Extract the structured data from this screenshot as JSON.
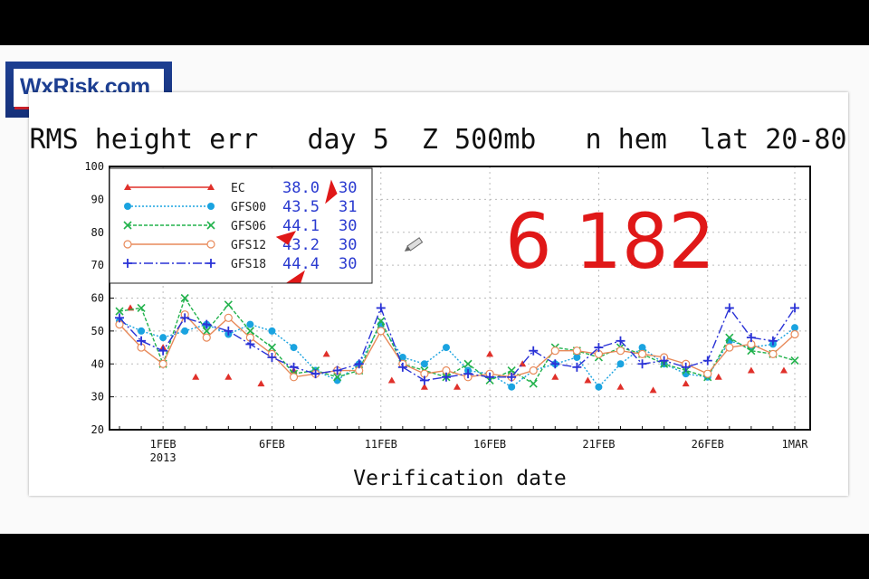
{
  "logo": {
    "text": "WxRisk.com"
  },
  "chart_data": {
    "type": "line",
    "title": "RMS height err   day 5  Z 500mb   n hem  lat 20-80",
    "xlabel": "Verification date",
    "ylabel": "",
    "ylim": [
      20,
      100
    ],
    "yticks": [
      20,
      30,
      40,
      50,
      60,
      70,
      80,
      90,
      100
    ],
    "x_range_days": [
      0,
      31
    ],
    "xtick_days": [
      2,
      7,
      12,
      17,
      22,
      27,
      31
    ],
    "xtick_labels": [
      "1FEB",
      "6FEB",
      "11FEB",
      "16FEB",
      "21FEB",
      "26FEB",
      "1MAR"
    ],
    "xtick_sublabel": "2013",
    "grid": true,
    "legend_position": "top-left",
    "legend": [
      {
        "name": "EC",
        "mean": "38.0",
        "count": "30",
        "color": "#e0302a",
        "marker": "triangle",
        "dash": ""
      },
      {
        "name": "GFS00",
        "mean": "43.5",
        "count": "31",
        "color": "#1aa3e0",
        "marker": "circle",
        "dash": "2,2"
      },
      {
        "name": "GFS06",
        "mean": "44.1",
        "count": "30",
        "color": "#22b24c",
        "marker": "x",
        "dash": "4,2"
      },
      {
        "name": "GFS12",
        "mean": "43.2",
        "count": "30",
        "color": "#e88a5a",
        "marker": "open-circle",
        "dash": ""
      },
      {
        "name": "GFS18",
        "mean": "44.4",
        "count": "30",
        "color": "#2a32d6",
        "marker": "plus",
        "dash": "10,3,2,3"
      }
    ],
    "series": [
      {
        "name": "EC",
        "x": [
          0.5,
          2,
          3.5,
          5,
          6.5,
          8,
          9.5,
          11,
          12.5,
          14,
          15.5,
          17,
          18.5,
          20,
          21.5,
          23,
          24.5,
          26,
          27.5,
          29,
          30.5
        ],
        "y": [
          57,
          45,
          36,
          36,
          34,
          38,
          43,
          40,
          35,
          33,
          33,
          43,
          40,
          36,
          35,
          33,
          32,
          34,
          36,
          38,
          38
        ]
      },
      {
        "name": "GFS00",
        "x": [
          0,
          1,
          2,
          3,
          4,
          5,
          6,
          7,
          8,
          9,
          10,
          11,
          12,
          13,
          14,
          15,
          16,
          17,
          18,
          19,
          20,
          21,
          22,
          23,
          24,
          25,
          26,
          27,
          28,
          29,
          30,
          31
        ],
        "y": [
          53,
          50,
          48,
          50,
          52,
          49,
          52,
          50,
          45,
          38,
          35,
          40,
          52,
          42,
          40,
          45,
          38,
          37,
          33,
          38,
          40,
          42,
          33,
          40,
          45,
          40,
          37,
          36,
          47,
          45,
          46,
          51
        ]
      },
      {
        "name": "GFS06",
        "x": [
          0,
          1,
          2,
          3,
          4,
          5,
          6,
          7,
          8,
          9,
          10,
          11,
          12,
          13,
          14,
          15,
          16,
          17,
          18,
          19,
          20,
          21,
          22,
          23,
          24,
          25,
          26,
          27,
          28,
          29,
          30,
          31
        ],
        "y": [
          56,
          57,
          40,
          60,
          50,
          58,
          50,
          45,
          37,
          38,
          36,
          38,
          53,
          40,
          38,
          36,
          40,
          35,
          38,
          34,
          45,
          44,
          42,
          45,
          43,
          40,
          38,
          36,
          48,
          44,
          43,
          41
        ]
      },
      {
        "name": "GFS12",
        "x": [
          0,
          1,
          2,
          3,
          4,
          5,
          6,
          7,
          8,
          9,
          10,
          11,
          12,
          13,
          14,
          15,
          16,
          17,
          18,
          19,
          20,
          21,
          22,
          23,
          24,
          25,
          26,
          27,
          28,
          29,
          30,
          31
        ],
        "y": [
          52,
          45,
          40,
          55,
          48,
          54,
          48,
          43,
          36,
          37,
          38,
          38,
          50,
          40,
          37,
          38,
          36,
          37,
          36,
          38,
          44,
          44,
          43,
          44,
          43,
          42,
          40,
          37,
          45,
          46,
          43,
          49
        ]
      },
      {
        "name": "GFS18",
        "x": [
          0,
          1,
          2,
          3,
          4,
          5,
          6,
          7,
          8,
          9,
          10,
          11,
          12,
          13,
          14,
          15,
          16,
          17,
          18,
          19,
          20,
          21,
          22,
          23,
          24,
          25,
          26,
          27,
          28,
          29,
          30,
          31
        ],
        "y": [
          54,
          47,
          44,
          54,
          52,
          50,
          46,
          42,
          39,
          37,
          38,
          40,
          57,
          39,
          35,
          36,
          37,
          36,
          36,
          44,
          40,
          39,
          45,
          47,
          40,
          41,
          39,
          41,
          57,
          48,
          47,
          57
        ]
      }
    ]
  },
  "annotation": {
    "handwritten": "6 182"
  }
}
